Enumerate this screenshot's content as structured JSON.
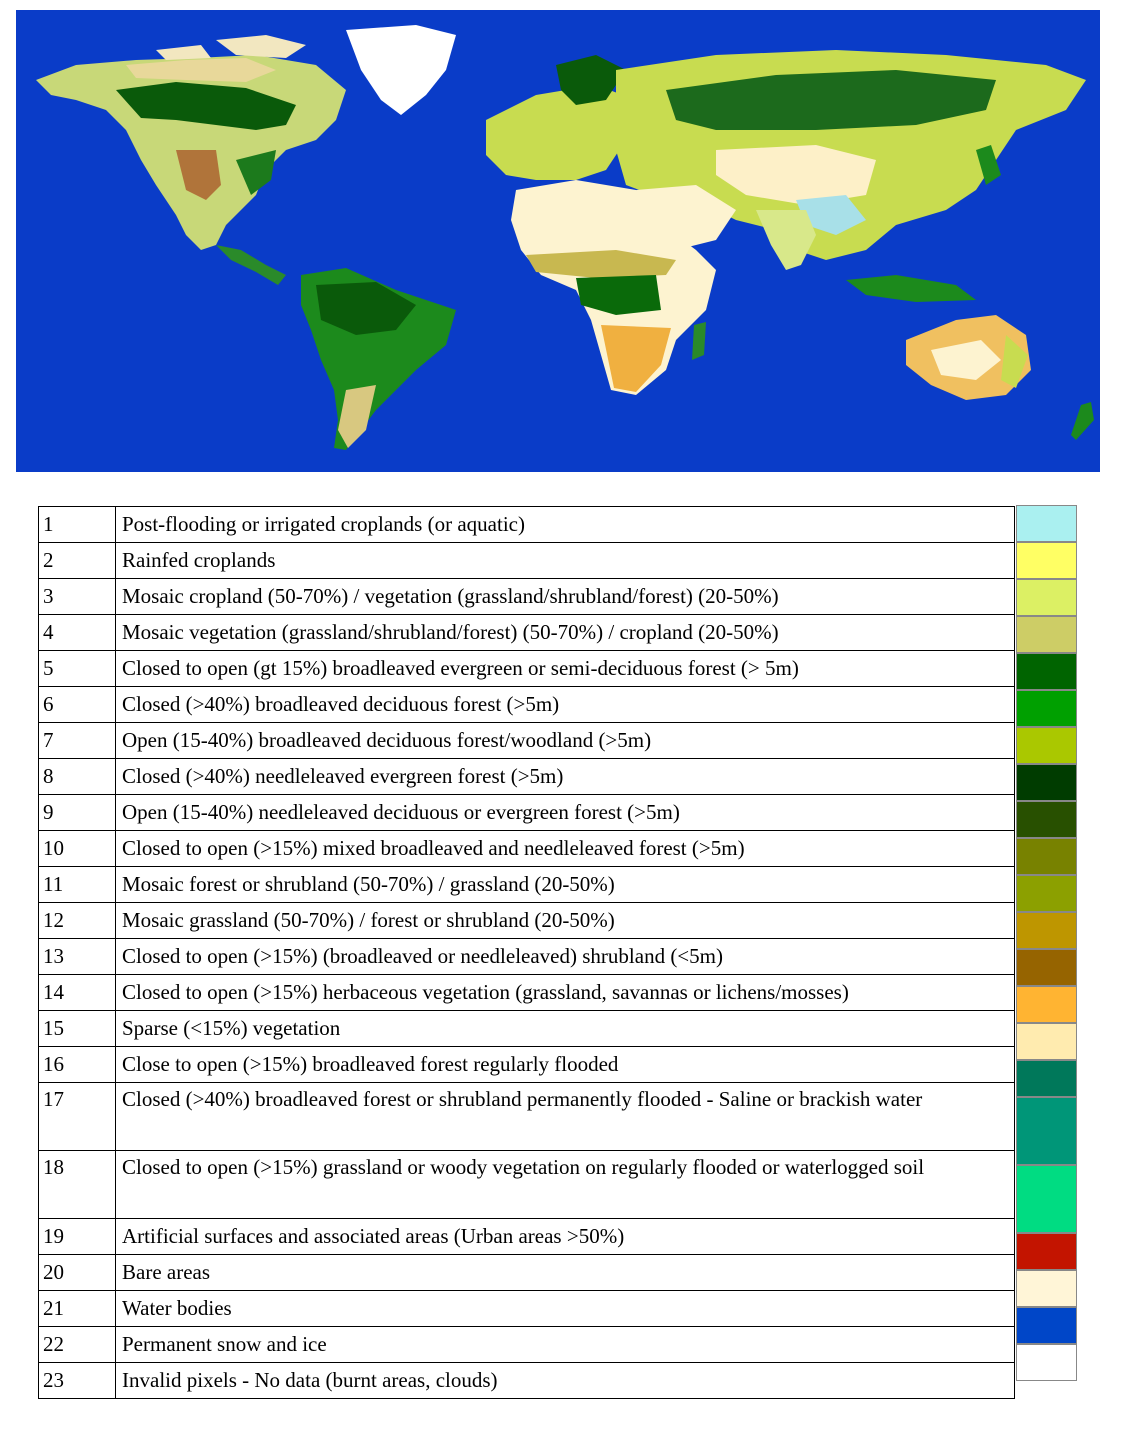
{
  "colors": {
    "water": "#0a3cc8",
    "ice": "#ffffff",
    "bare": "#fdf3d0",
    "forest_dark": "#0a5a0a",
    "forest": "#1c8a1c",
    "crop": "#c8dc50",
    "shrub": "#a0641e",
    "herb": "#f0b040",
    "irrigated": "#a8eef0"
  },
  "legend": [
    {
      "num": "1",
      "label": "Post-flooding or irrigated croplands (or aquatic)",
      "color": "#aaf0f0"
    },
    {
      "num": "2",
      "label": "Rainfed croplands",
      "color": "#ffff64"
    },
    {
      "num": "3",
      "label": "Mosaic cropland (50-70%) / vegetation (grassland/shrubland/forest) (20-50%)",
      "color": "#dcf064"
    },
    {
      "num": "4",
      "label": "Mosaic vegetation (grassland/shrubland/forest) (50-70%) / cropland (20-50%)",
      "color": "#cdcd66"
    },
    {
      "num": "5",
      "label": "Closed to open (gt 15%) broadleaved evergreen or semi-deciduous forest (> 5m)",
      "color": "#006400"
    },
    {
      "num": "6",
      "label": "Closed (>40%) broadleaved deciduous forest (>5m)",
      "color": "#00a000"
    },
    {
      "num": "7",
      "label": "Open (15-40%) broadleaved deciduous forest/woodland (>5m)",
      "color": "#aac800"
    },
    {
      "num": "8",
      "label": "Closed (>40%) needleleaved evergreen forest (>5m)",
      "color": "#003c00"
    },
    {
      "num": "9",
      "label": "Open (15-40%) needleleaved deciduous or evergreen forest (>5m)",
      "color": "#285000"
    },
    {
      "num": "10",
      "label": "Closed to open (>15%) mixed broadleaved and needleleaved forest (>5m)",
      "color": "#788200"
    },
    {
      "num": "11",
      "label": "Mosaic forest or shrubland (50-70%) / grassland (20-50%)",
      "color": "#8ca000"
    },
    {
      "num": "12",
      "label": "Mosaic grassland (50-70%) / forest or shrubland (20-50%)",
      "color": "#be9600"
    },
    {
      "num": "13",
      "label": "Closed to open (>15%) (broadleaved or needleleaved) shrubland (<5m)",
      "color": "#966400"
    },
    {
      "num": "14",
      "label": "Closed to open (>15%) herbaceous vegetation (grassland, savannas or  lichens/mosses)",
      "color": "#ffb432"
    },
    {
      "num": "15",
      "label": "Sparse (<15%) vegetation",
      "color": "#ffebaf"
    },
    {
      "num": "16",
      "label": "Close to open (>15%) broadleaved forest regularly flooded",
      "color": "#00785a"
    },
    {
      "num": "17",
      "label": "Closed (>40%) broadleaved forest or shrubland permanently flooded - Saline or brackish water",
      "color": "#009678"
    },
    {
      "num": "18",
      "label": "Closed to open (>15%) grassland or woody vegetation on regularly flooded or waterlogged soil",
      "color": "#00dc82"
    },
    {
      "num": "19",
      "label": "Artificial surfaces and associated areas (Urban areas >50%)",
      "color": "#c31400"
    },
    {
      "num": "20",
      "label": "Bare areas",
      "color": "#fff5d7"
    },
    {
      "num": "21",
      "label": "Water bodies",
      "color": "#0046c8"
    },
    {
      "num": "22",
      "label": "Permanent snow and ice",
      "color": "#ffffff"
    },
    {
      "num": "23",
      "label": "Invalid pixels - No data (burnt areas, clouds)",
      "color": ""
    }
  ]
}
